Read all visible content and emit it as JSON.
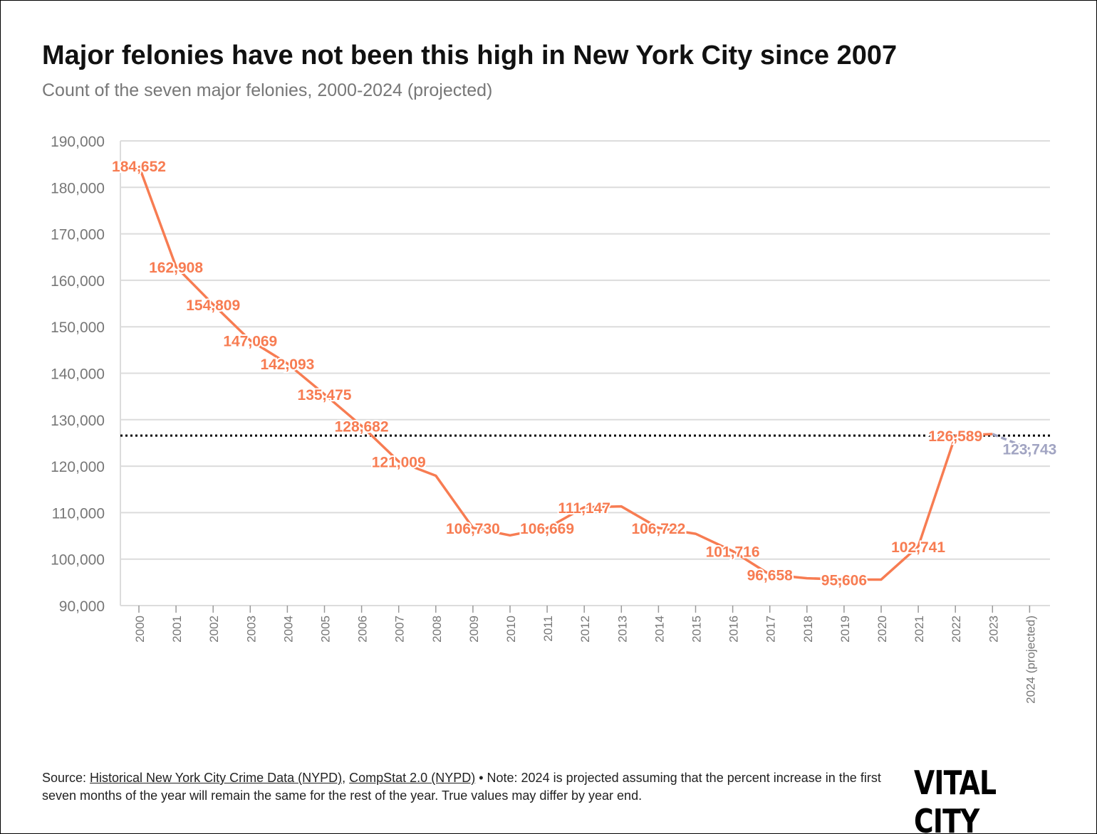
{
  "title": "Major felonies have not been this high in New York City since 2007",
  "subtitle": "Count of the seven major felonies, 2000-2024 (projected)",
  "source": {
    "prefix": "Source: ",
    "link1": "Historical New York City Crime Data (NYPD)",
    "sep": ", ",
    "link2": "CompStat 2.0 (NYPD)",
    "note": " • Note: 2024 is projected assuming that the percent increase in the first seven months of the year will remain the same for the rest of the year. True values may differ by year end."
  },
  "logo": "VITAL CITY",
  "colors": {
    "line": "#f77c52",
    "projected": "#a1a4c2",
    "reference": "#000000",
    "grid": "#dcdcdc"
  },
  "chart_data": {
    "type": "line",
    "title": "Major felonies have not been this high in New York City since 2007",
    "xlabel": "",
    "ylabel": "",
    "ylim": [
      90000,
      190000
    ],
    "yticks": [
      90000,
      100000,
      110000,
      120000,
      130000,
      140000,
      150000,
      160000,
      170000,
      180000,
      190000
    ],
    "ytick_labels": [
      "90,000",
      "100,000",
      "110,000",
      "120,000",
      "130,000",
      "140,000",
      "150,000",
      "160,000",
      "170,000",
      "180,000",
      "190,000"
    ],
    "categories": [
      "2000",
      "2001",
      "2002",
      "2003",
      "2004",
      "2005",
      "2006",
      "2007",
      "2008",
      "2009",
      "2010",
      "2011",
      "2012",
      "2013",
      "2014",
      "2015",
      "2016",
      "2017",
      "2018",
      "2019",
      "2020",
      "2021",
      "2022",
      "2023",
      "2024 (projected)"
    ],
    "values": [
      184652,
      162908,
      154809,
      147069,
      142093,
      135475,
      128682,
      121009,
      117956,
      106730,
      105115,
      106669,
      111147,
      111335,
      106722,
      105453,
      101716,
      96658,
      95883,
      95606,
      95593,
      102741,
      126589,
      126900,
      123743
    ],
    "labels": [
      "184,652",
      "162,908",
      "154,809",
      "147,069",
      "142,093",
      "135,475",
      "128,682",
      "121,009",
      null,
      "106,730",
      null,
      "106,669",
      "111,147",
      null,
      "106,722",
      null,
      "101,716",
      "96,658",
      null,
      "95,606",
      null,
      "102,741",
      "126,589",
      null,
      "123,743"
    ],
    "projected_from_index": 23,
    "reference_line": 126589,
    "grid": true
  }
}
